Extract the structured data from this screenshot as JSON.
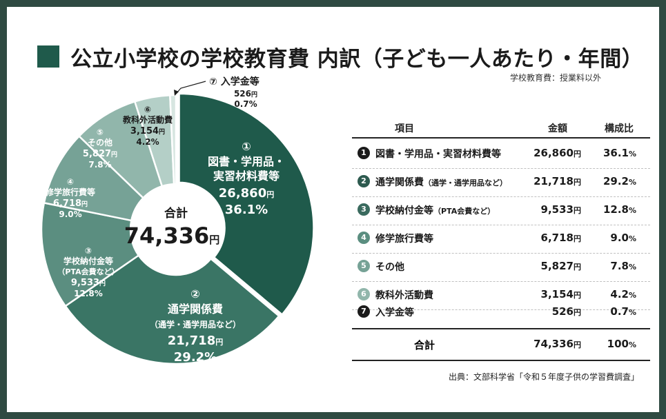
{
  "title": "公立小学校の学校教育費 内訳（子ども一人あたり・年間）",
  "subtitle": "学校教育費：授業料以外",
  "source": "出典：文部科学省「令和５年度子供の学習費調査」",
  "colors": {
    "background": "#2f4a42",
    "slices": [
      "#1f5a4b",
      "#3a7565",
      "#5b8e80",
      "#76a296",
      "#91b6ab",
      "#b4cfc7",
      "#d7e6e1"
    ]
  },
  "chart_data": {
    "type": "pie",
    "donut": true,
    "center_label": "合計",
    "center_value": "74,336",
    "center_unit": "円",
    "slices": [
      {
        "num": "①",
        "label_lines": [
          "図書・学用品・",
          "実習材料費等"
        ],
        "amount": "26,860",
        "value": 26860,
        "pct": "36.1%"
      },
      {
        "num": "②",
        "label_lines": [
          "通学関係費",
          "（通学・通学用品など）"
        ],
        "amount": "21,718",
        "value": 21718,
        "pct": "29.2%"
      },
      {
        "num": "③",
        "label_lines": [
          "学校納付金等",
          "（PTA会費など）"
        ],
        "amount": "9,533",
        "value": 9533,
        "pct": "12.8%"
      },
      {
        "num": "④",
        "label_lines": [
          "修学旅行費等"
        ],
        "amount": "6,718",
        "value": 6718,
        "pct": "9.0%"
      },
      {
        "num": "⑤",
        "label_lines": [
          "その他"
        ],
        "amount": "5,827",
        "value": 5827,
        "pct": "7.8%"
      },
      {
        "num": "⑥",
        "label_lines": [
          "教科外活動費"
        ],
        "amount": "3,154",
        "value": 3154,
        "pct": "4.2%"
      },
      {
        "num": "⑦",
        "label_lines": [
          "入学金等"
        ],
        "amount": "526",
        "value": 526,
        "pct": "0.7%"
      }
    ]
  },
  "table": {
    "headers": {
      "item": "項目",
      "amount": "金額",
      "ratio": "構成比"
    },
    "yen": "円",
    "rows": [
      {
        "num": "1",
        "label": "図書・学用品・実習材料費等",
        "note": "",
        "amount": "26,860",
        "pct": "36.1",
        "pct_sign": "%"
      },
      {
        "num": "2",
        "label": "通学関係費",
        "note": "（通学・通学用品など）",
        "amount": "21,718",
        "pct": "29.2",
        "pct_sign": "%"
      },
      {
        "num": "3",
        "label": "学校納付金等",
        "note": "（PTA会費など）",
        "amount": "9,533",
        "pct": "12.8",
        "pct_sign": "%"
      },
      {
        "num": "4",
        "label": "修学旅行費等",
        "note": "",
        "amount": "6,718",
        "pct": "9.0",
        "pct_sign": "%"
      },
      {
        "num": "5",
        "label": "その他",
        "note": "",
        "amount": "5,827",
        "pct": "7.8",
        "pct_sign": "%"
      },
      {
        "num": "6",
        "label": "教科外活動費",
        "note": "",
        "amount": "3,154",
        "pct": "4.2",
        "pct_sign": "%"
      },
      {
        "num": "7",
        "label": "入学金等",
        "note": "",
        "amount": "526",
        "pct": "0.7",
        "pct_sign": "%"
      }
    ],
    "total": {
      "label": "合計",
      "amount": "74,336",
      "pct": "100",
      "pct_sign": "%"
    }
  }
}
